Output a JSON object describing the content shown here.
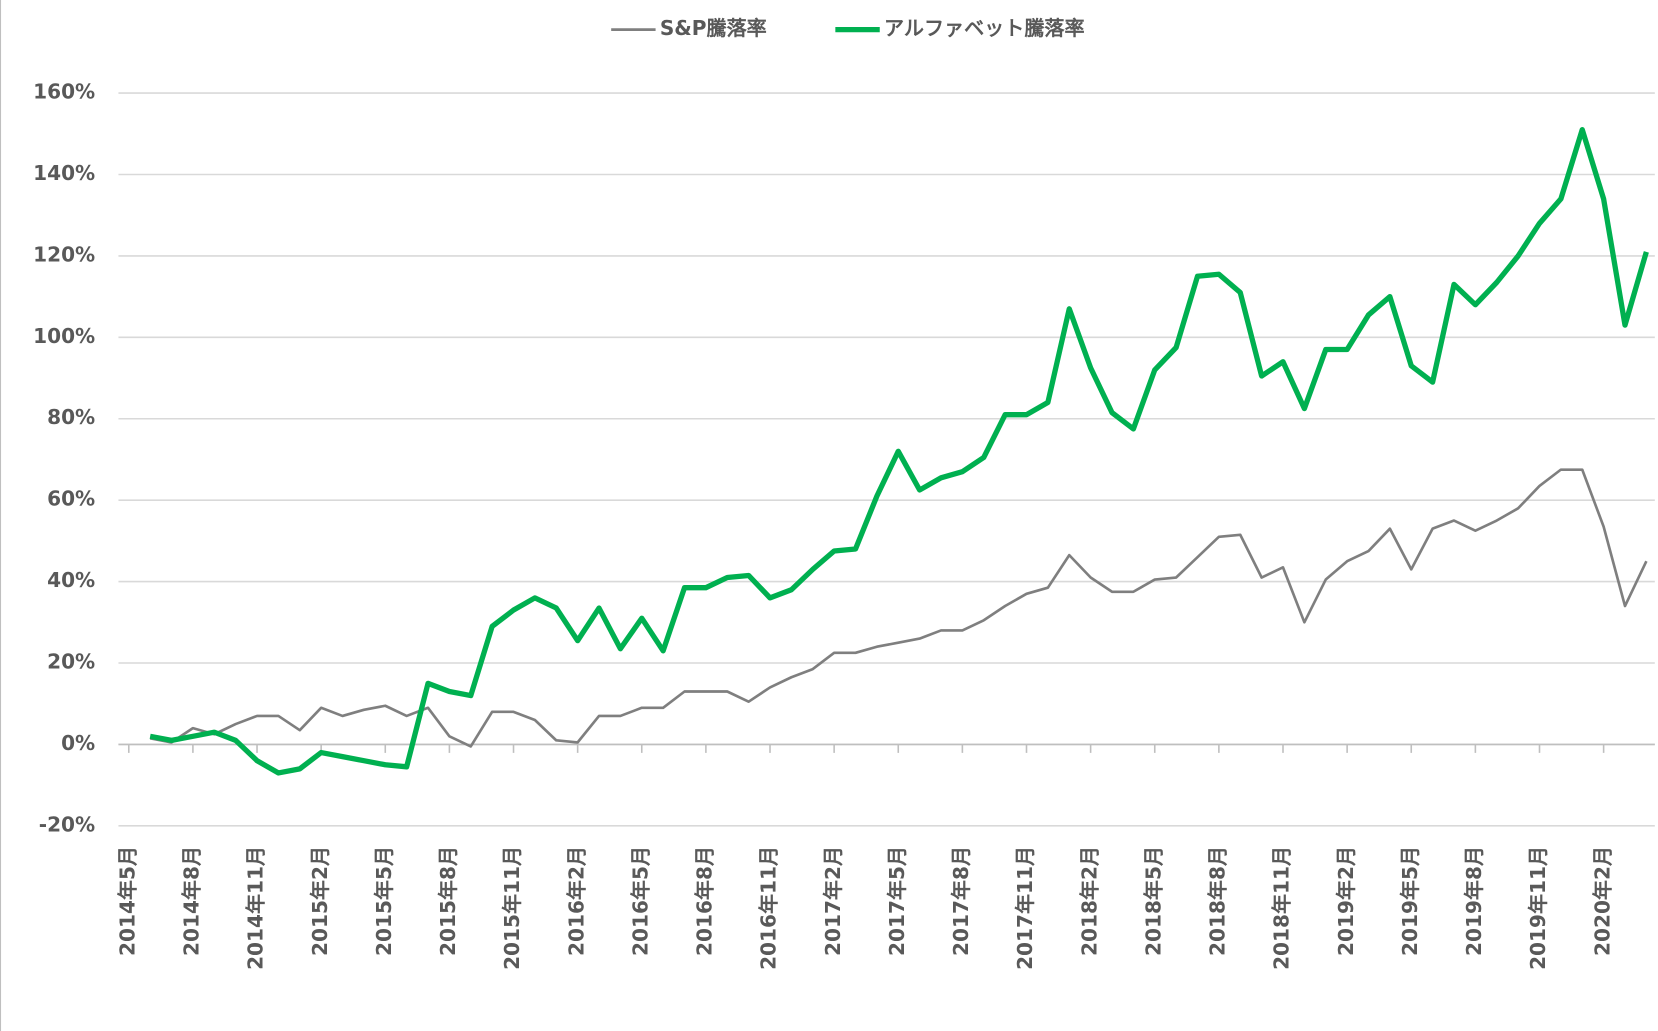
{
  "chart_data": {
    "type": "line",
    "categories": [
      "2014年5月",
      null,
      null,
      "2014年8月",
      null,
      null,
      "2014年11月",
      null,
      null,
      "2015年2月",
      null,
      null,
      "2015年5月",
      null,
      null,
      "2015年8月",
      null,
      null,
      "2015年11月",
      null,
      null,
      "2016年2月",
      null,
      null,
      "2016年5月",
      null,
      null,
      "2016年8月",
      null,
      null,
      "2016年11月",
      null,
      null,
      "2017年2月",
      null,
      null,
      "2017年5月",
      null,
      null,
      "2017年8月",
      null,
      null,
      "2017年11月",
      null,
      null,
      "2018年2月",
      null,
      null,
      "2018年5月",
      null,
      null,
      "2018年8月",
      null,
      null,
      "2018年11月",
      null,
      null,
      "2019年2月",
      null,
      null,
      "2019年5月",
      null,
      null,
      "2019年8月",
      null,
      null,
      "2019年11月",
      null,
      null,
      "2020年2月",
      null
    ],
    "series": [
      {
        "name": "S&P騰落率",
        "color": "#7f7f7f",
        "values": [
          1.5,
          0.5,
          4,
          2.5,
          5,
          7,
          7,
          3.5,
          9,
          7,
          8.5,
          9.5,
          7,
          9,
          2,
          -0.5,
          8,
          8,
          6,
          1,
          0.5,
          7,
          7,
          9,
          9,
          13,
          13,
          13,
          10.5,
          14,
          16.5,
          18.5,
          22.5,
          22.5,
          24,
          25,
          26,
          28,
          28,
          30.5,
          34,
          37,
          38.5,
          46.5,
          41,
          37.5,
          37.5,
          40.5,
          41,
          46,
          51,
          51.5,
          41,
          43.5,
          30,
          40.5,
          45,
          47.5,
          53,
          43,
          53,
          55,
          52.5,
          55,
          58,
          63.5,
          67.5,
          67.5,
          53.5,
          34,
          45
        ]
      },
      {
        "name": "アルファベット騰落率",
        "color": "#00b050",
        "values": [
          2,
          1,
          2,
          3,
          1,
          -4,
          -7,
          -6,
          -2,
          -3,
          -4,
          -5,
          -5.5,
          15,
          13,
          12,
          29,
          33,
          36,
          33.5,
          25.5,
          33.5,
          23.5,
          31,
          23,
          38.5,
          38.5,
          41,
          41.5,
          36,
          38,
          43,
          47.5,
          48,
          61,
          72,
          62.5,
          65.5,
          67,
          70.5,
          81,
          81,
          84,
          107,
          92.5,
          81.5,
          77.5,
          92,
          97.5,
          115,
          115.5,
          111,
          90.5,
          94,
          82.5,
          97,
          97,
          105.5,
          110,
          93,
          89,
          113,
          108,
          113.5,
          120,
          128,
          134,
          151,
          134,
          103,
          121
        ]
      }
    ],
    "ylim": [
      -20,
      160
    ],
    "yticks": [
      {
        "value": -20,
        "label": "-20%"
      },
      {
        "value": 0,
        "label": "0%"
      },
      {
        "value": 20,
        "label": "20%"
      },
      {
        "value": 40,
        "label": "40%"
      },
      {
        "value": 60,
        "label": "60%"
      },
      {
        "value": 80,
        "label": "80%"
      },
      {
        "value": 100,
        "label": "100%"
      },
      {
        "value": 120,
        "label": "120%"
      },
      {
        "value": 140,
        "label": "140%"
      },
      {
        "value": 160,
        "label": "160%"
      }
    ],
    "grid": true,
    "legend": "top"
  }
}
